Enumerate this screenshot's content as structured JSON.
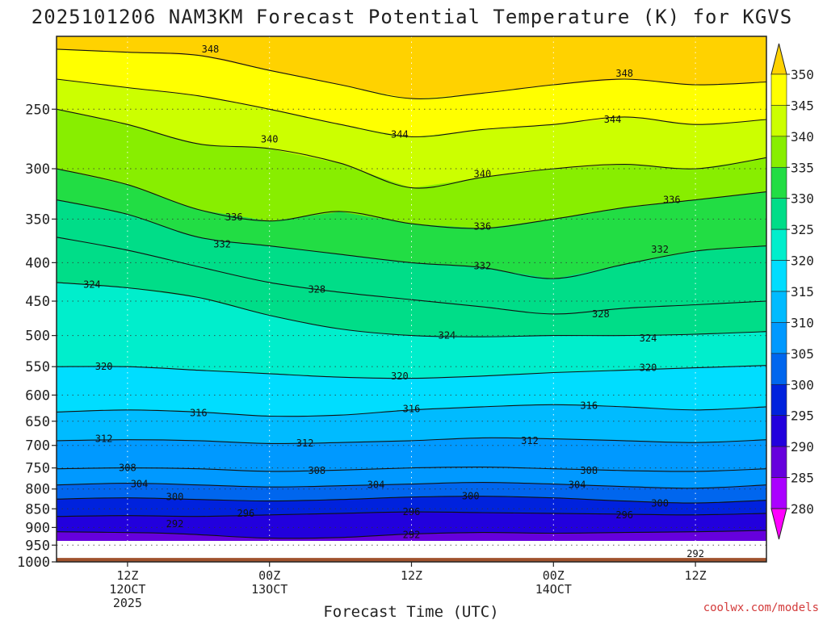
{
  "chart_data": {
    "type": "heatmap",
    "title": "2025101206 NAM3KM Forecast Potential Temperature (K) for KGVS",
    "xlabel": "Forecast Time (UTC)",
    "ylabel": "",
    "credit": "coolwx.com/models",
    "x_ticks": [
      {
        "hour": 6,
        "lines": [
          "12Z",
          "12OCT",
          "2025"
        ]
      },
      {
        "hour": 18,
        "lines": [
          "00Z",
          "13OCT"
        ]
      },
      {
        "hour": 30,
        "lines": [
          "12Z"
        ]
      },
      {
        "hour": 42,
        "lines": [
          "00Z",
          "14OCT"
        ]
      },
      {
        "hour": 54,
        "lines": [
          "12Z"
        ]
      }
    ],
    "x_range_hours": [
      0,
      60
    ],
    "y_ticks_hpa": [
      250,
      300,
      350,
      400,
      450,
      500,
      550,
      600,
      650,
      700,
      750,
      800,
      850,
      900,
      950,
      1000
    ],
    "y_range_hpa": [
      200,
      1000
    ],
    "surface_pressure_hpa": 988,
    "colorbar": {
      "labels": [
        350,
        345,
        340,
        335,
        330,
        325,
        320,
        315,
        310,
        305,
        300,
        295,
        290,
        285,
        280
      ],
      "colors": [
        "#ffd200",
        "#ffff00",
        "#ccff00",
        "#88ee00",
        "#22dd44",
        "#00dd88",
        "#00eecc",
        "#00ddff",
        "#00bbff",
        "#0099ff",
        "#0066ee",
        "#0022dd",
        "#2200dd",
        "#6600dd",
        "#aa00ff",
        "#ff00ff"
      ]
    },
    "isentropes": [
      {
        "theta": 292,
        "p": [
          [
            0,
            912
          ],
          [
            8,
            915
          ],
          [
            12,
            920
          ],
          [
            18,
            930
          ],
          [
            24,
            928
          ],
          [
            30,
            918
          ],
          [
            36,
            914
          ],
          [
            42,
            916
          ],
          [
            48,
            914
          ],
          [
            54,
            912
          ],
          [
            60,
            908
          ]
        ]
      },
      {
        "theta": 296,
        "p": [
          [
            0,
            870
          ],
          [
            6,
            868
          ],
          [
            12,
            870
          ],
          [
            18,
            866
          ],
          [
            24,
            862
          ],
          [
            30,
            858
          ],
          [
            36,
            860
          ],
          [
            42,
            862
          ],
          [
            48,
            864
          ],
          [
            54,
            866
          ],
          [
            60,
            862
          ]
        ]
      },
      {
        "theta": 300,
        "p": [
          [
            0,
            825
          ],
          [
            6,
            822
          ],
          [
            12,
            826
          ],
          [
            18,
            830
          ],
          [
            24,
            826
          ],
          [
            30,
            820
          ],
          [
            36,
            818
          ],
          [
            42,
            822
          ],
          [
            48,
            830
          ],
          [
            54,
            835
          ],
          [
            60,
            828
          ]
        ]
      },
      {
        "theta": 304,
        "p": [
          [
            0,
            790
          ],
          [
            6,
            786
          ],
          [
            12,
            790
          ],
          [
            18,
            795
          ],
          [
            24,
            792
          ],
          [
            30,
            788
          ],
          [
            36,
            784
          ],
          [
            42,
            788
          ],
          [
            48,
            794
          ],
          [
            54,
            798
          ],
          [
            60,
            790
          ]
        ]
      },
      {
        "theta": 308,
        "p": [
          [
            0,
            752
          ],
          [
            6,
            750
          ],
          [
            12,
            752
          ],
          [
            18,
            758
          ],
          [
            24,
            755
          ],
          [
            30,
            750
          ],
          [
            36,
            748
          ],
          [
            42,
            752
          ],
          [
            48,
            756
          ],
          [
            54,
            758
          ],
          [
            60,
            752
          ]
        ]
      },
      {
        "theta": 312,
        "p": [
          [
            0,
            690
          ],
          [
            6,
            688
          ],
          [
            12,
            690
          ],
          [
            18,
            696
          ],
          [
            24,
            694
          ],
          [
            30,
            690
          ],
          [
            36,
            684
          ],
          [
            42,
            686
          ],
          [
            48,
            690
          ],
          [
            54,
            694
          ],
          [
            60,
            688
          ]
        ]
      },
      {
        "theta": 316,
        "p": [
          [
            0,
            632
          ],
          [
            6,
            628
          ],
          [
            12,
            632
          ],
          [
            18,
            640
          ],
          [
            24,
            638
          ],
          [
            30,
            628
          ],
          [
            36,
            622
          ],
          [
            42,
            618
          ],
          [
            48,
            622
          ],
          [
            54,
            628
          ],
          [
            60,
            622
          ]
        ]
      },
      {
        "theta": 320,
        "p": [
          [
            0,
            550
          ],
          [
            6,
            550
          ],
          [
            12,
            556
          ],
          [
            18,
            562
          ],
          [
            24,
            568
          ],
          [
            30,
            570
          ],
          [
            36,
            566
          ],
          [
            42,
            560
          ],
          [
            48,
            556
          ],
          [
            54,
            552
          ],
          [
            60,
            548
          ]
        ]
      },
      {
        "theta": 324,
        "p": [
          [
            0,
            425
          ],
          [
            6,
            432
          ],
          [
            12,
            445
          ],
          [
            18,
            470
          ],
          [
            24,
            490
          ],
          [
            30,
            500
          ],
          [
            36,
            502
          ],
          [
            42,
            500
          ],
          [
            48,
            500
          ],
          [
            54,
            498
          ],
          [
            60,
            494
          ]
        ]
      },
      {
        "theta": 328,
        "p": [
          [
            0,
            370
          ],
          [
            6,
            385
          ],
          [
            12,
            405
          ],
          [
            18,
            425
          ],
          [
            24,
            438
          ],
          [
            30,
            448
          ],
          [
            36,
            458
          ],
          [
            42,
            468
          ],
          [
            48,
            460
          ],
          [
            54,
            455
          ],
          [
            60,
            450
          ]
        ]
      },
      {
        "theta": 332,
        "p": [
          [
            0,
            330
          ],
          [
            6,
            345
          ],
          [
            12,
            370
          ],
          [
            18,
            380
          ],
          [
            24,
            390
          ],
          [
            30,
            400
          ],
          [
            36,
            406
          ],
          [
            42,
            420
          ],
          [
            48,
            402
          ],
          [
            54,
            386
          ],
          [
            60,
            380
          ]
        ]
      },
      {
        "theta": 336,
        "p": [
          [
            0,
            300
          ],
          [
            6,
            315
          ],
          [
            12,
            340
          ],
          [
            18,
            352
          ],
          [
            24,
            342
          ],
          [
            30,
            355
          ],
          [
            36,
            360
          ],
          [
            42,
            350
          ],
          [
            48,
            338
          ],
          [
            54,
            330
          ],
          [
            60,
            322
          ]
        ]
      },
      {
        "theta": 340,
        "p": [
          [
            0,
            250
          ],
          [
            6,
            262
          ],
          [
            12,
            278
          ],
          [
            18,
            282
          ],
          [
            24,
            295
          ],
          [
            30,
            318
          ],
          [
            36,
            308
          ],
          [
            42,
            300
          ],
          [
            48,
            296
          ],
          [
            54,
            300
          ],
          [
            60,
            290
          ]
        ]
      },
      {
        "theta": 344,
        "p": [
          [
            0,
            228
          ],
          [
            6,
            234
          ],
          [
            12,
            240
          ],
          [
            18,
            250
          ],
          [
            24,
            262
          ],
          [
            30,
            272
          ],
          [
            36,
            266
          ],
          [
            42,
            262
          ],
          [
            48,
            256
          ],
          [
            54,
            262
          ],
          [
            60,
            258
          ]
        ]
      },
      {
        "theta": 348,
        "p": [
          [
            0,
            208
          ],
          [
            6,
            210
          ],
          [
            12,
            212
          ],
          [
            18,
            222
          ],
          [
            24,
            232
          ],
          [
            30,
            242
          ],
          [
            36,
            238
          ],
          [
            42,
            232
          ],
          [
            48,
            228
          ],
          [
            54,
            232
          ],
          [
            60,
            230
          ]
        ]
      }
    ],
    "contour_labels": [
      {
        "text": "348",
        "hour": 13,
        "hpa": 208
      },
      {
        "text": "348",
        "hour": 48,
        "hpa": 224
      },
      {
        "text": "344",
        "hour": 29,
        "hpa": 270
      },
      {
        "text": "344",
        "hour": 47,
        "hpa": 258
      },
      {
        "text": "340",
        "hour": 18,
        "hpa": 274
      },
      {
        "text": "340",
        "hour": 36,
        "hpa": 305
      },
      {
        "text": "336",
        "hour": 15,
        "hpa": 348
      },
      {
        "text": "336",
        "hour": 36,
        "hpa": 358
      },
      {
        "text": "336",
        "hour": 52,
        "hpa": 330
      },
      {
        "text": "332",
        "hour": 14,
        "hpa": 378
      },
      {
        "text": "332",
        "hour": 36,
        "hpa": 404
      },
      {
        "text": "332",
        "hour": 51,
        "hpa": 384
      },
      {
        "text": "328",
        "hour": 22,
        "hpa": 434
      },
      {
        "text": "328",
        "hour": 46,
        "hpa": 468
      },
      {
        "text": "324",
        "hour": 3,
        "hpa": 428
      },
      {
        "text": "324",
        "hour": 33,
        "hpa": 500
      },
      {
        "text": "324",
        "hour": 50,
        "hpa": 504
      },
      {
        "text": "320",
        "hour": 4,
        "hpa": 550
      },
      {
        "text": "320",
        "hour": 29,
        "hpa": 566
      },
      {
        "text": "320",
        "hour": 50,
        "hpa": 552
      },
      {
        "text": "316",
        "hour": 12,
        "hpa": 634
      },
      {
        "text": "316",
        "hour": 30,
        "hpa": 626
      },
      {
        "text": "316",
        "hour": 45,
        "hpa": 620
      },
      {
        "text": "312",
        "hour": 4,
        "hpa": 686
      },
      {
        "text": "312",
        "hour": 21,
        "hpa": 695
      },
      {
        "text": "312",
        "hour": 40,
        "hpa": 690
      },
      {
        "text": "308",
        "hour": 6,
        "hpa": 750
      },
      {
        "text": "308",
        "hour": 22,
        "hpa": 756
      },
      {
        "text": "308",
        "hour": 45,
        "hpa": 756
      },
      {
        "text": "304",
        "hour": 7,
        "hpa": 788
      },
      {
        "text": "304",
        "hour": 27,
        "hpa": 790
      },
      {
        "text": "304",
        "hour": 44,
        "hpa": 790
      },
      {
        "text": "300",
        "hour": 10,
        "hpa": 820
      },
      {
        "text": "300",
        "hour": 35,
        "hpa": 818
      },
      {
        "text": "300",
        "hour": 51,
        "hpa": 836
      },
      {
        "text": "296",
        "hour": 16,
        "hpa": 862
      },
      {
        "text": "296",
        "hour": 30,
        "hpa": 858
      },
      {
        "text": "296",
        "hour": 48,
        "hpa": 866
      },
      {
        "text": "292",
        "hour": 10,
        "hpa": 890
      },
      {
        "text": "292",
        "hour": 30,
        "hpa": 920
      },
      {
        "text": "292",
        "hour": 54,
        "hpa": 976
      }
    ]
  }
}
